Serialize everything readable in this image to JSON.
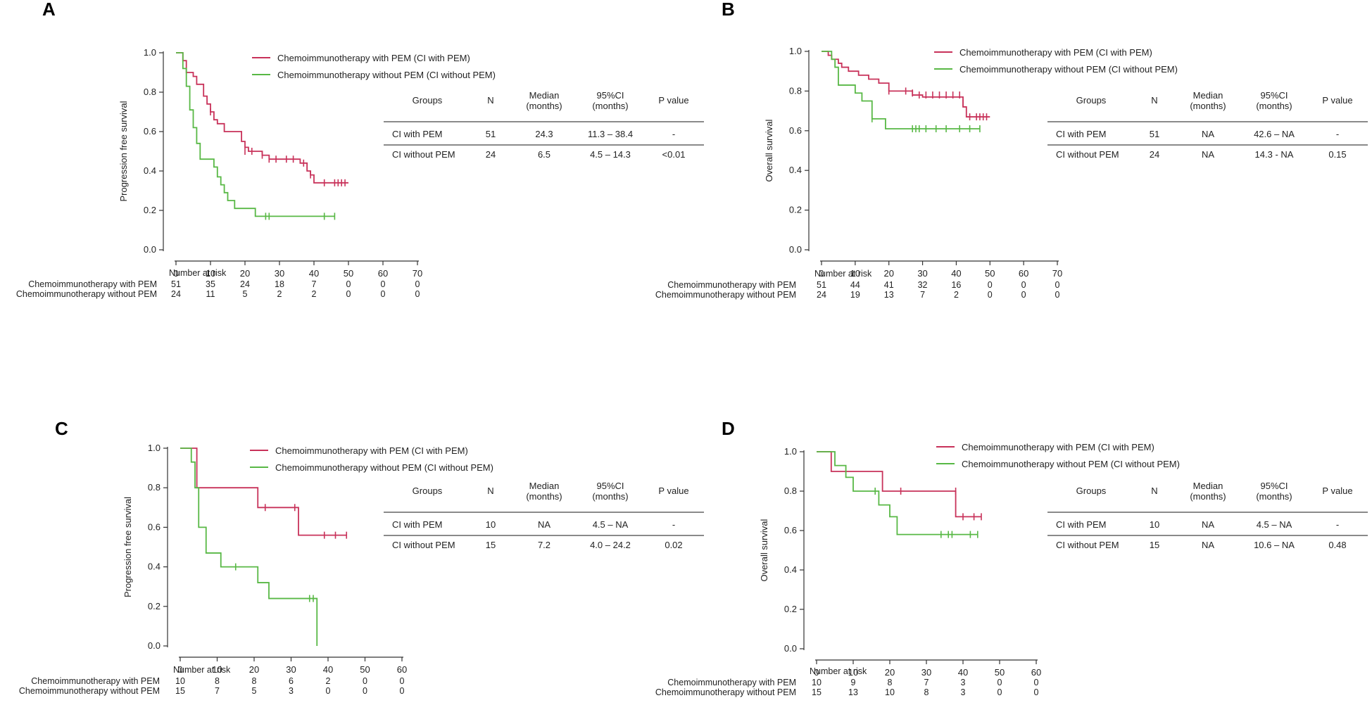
{
  "colors": {
    "with_pem": "#c8325a",
    "without_pem": "#58b845",
    "axis": "#333333"
  },
  "chart_data": [
    {
      "type": "line",
      "panel": "A",
      "ylabel": "Progression free survival",
      "xlim": [
        0,
        70
      ],
      "ylim": [
        0.0,
        1.0
      ],
      "xticks": [
        "0",
        "10",
        "20",
        "30",
        "40",
        "50",
        "60",
        "70"
      ],
      "yticks": [
        "0.0",
        "0.2",
        "0.4",
        "0.6",
        "0.8",
        "1.0"
      ],
      "legend": [
        "Chemoimmunotherapy  with PEM  (CI  with PEM)",
        "Chemoimmunotherapy  without PEM  (CI  without PEM)"
      ],
      "table": {
        "headers": [
          "Groups",
          "N",
          "Median\n(months)",
          "95%CI\n(months)",
          "P value"
        ],
        "rows": [
          [
            "CI  with PEM",
            "51",
            "24.3",
            "11.3 – 38.4",
            "-"
          ],
          [
            "CI  without PEM",
            "24",
            "6.5",
            "4.5 – 14.3",
            "<0.01"
          ]
        ]
      },
      "risk": {
        "title": "Number at risk",
        "rows": [
          {
            "label": "Chemoimmunotherapy  with PEM",
            "values": [
              "51",
              "35",
              "24",
              "18",
              "7",
              "0",
              "0",
              "0"
            ]
          },
          {
            "label": "Chemoimmunotherapy  without PEM",
            "values": [
              "24",
              "11",
              "5",
              "2",
              "2",
              "0",
              "0",
              "0"
            ]
          }
        ]
      },
      "series": [
        {
          "name": "CI with PEM",
          "steps": [
            [
              0,
              1.0
            ],
            [
              2,
              0.96
            ],
            [
              3,
              0.9
            ],
            [
              5,
              0.88
            ],
            [
              6,
              0.84
            ],
            [
              8,
              0.78
            ],
            [
              9,
              0.74
            ],
            [
              10,
              0.7
            ],
            [
              11,
              0.66
            ],
            [
              12,
              0.64
            ],
            [
              14,
              0.6
            ],
            [
              19,
              0.55
            ],
            [
              20,
              0.52
            ],
            [
              21,
              0.5
            ],
            [
              25,
              0.48
            ],
            [
              27,
              0.46
            ],
            [
              36,
              0.44
            ],
            [
              38,
              0.4
            ],
            [
              39,
              0.38
            ],
            [
              40,
              0.34
            ],
            [
              50,
              0.34
            ]
          ],
          "censors": [
            [
              10,
              0.7
            ],
            [
              20,
              0.5
            ],
            [
              22,
              0.5
            ],
            [
              25,
              0.48
            ],
            [
              27,
              0.46
            ],
            [
              29,
              0.46
            ],
            [
              32,
              0.46
            ],
            [
              34,
              0.46
            ],
            [
              37,
              0.44
            ],
            [
              38,
              0.42
            ],
            [
              39,
              0.38
            ],
            [
              43,
              0.34
            ],
            [
              46,
              0.34
            ],
            [
              47,
              0.34
            ],
            [
              48,
              0.34
            ],
            [
              49,
              0.34
            ]
          ]
        },
        {
          "name": "CI without PEM",
          "steps": [
            [
              0,
              1.0
            ],
            [
              2,
              0.92
            ],
            [
              3,
              0.83
            ],
            [
              4,
              0.71
            ],
            [
              5,
              0.62
            ],
            [
              6,
              0.54
            ],
            [
              7,
              0.46
            ],
            [
              11,
              0.42
            ],
            [
              12,
              0.37
            ],
            [
              13,
              0.33
            ],
            [
              14,
              0.29
            ],
            [
              15,
              0.25
            ],
            [
              17,
              0.21
            ],
            [
              23,
              0.17
            ],
            [
              46,
              0.17
            ]
          ],
          "censors": [
            [
              26,
              0.17
            ],
            [
              27,
              0.17
            ],
            [
              43,
              0.17
            ],
            [
              46,
              0.17
            ]
          ]
        }
      ]
    },
    {
      "type": "line",
      "panel": "B",
      "ylabel": "Overall survival",
      "xlim": [
        0,
        70
      ],
      "ylim": [
        0.0,
        1.0
      ],
      "xticks": [
        "0",
        "10",
        "20",
        "30",
        "40",
        "50",
        "60",
        "70"
      ],
      "yticks": [
        "0.0",
        "0.2",
        "0.4",
        "0.6",
        "0.8",
        "1.0"
      ],
      "legend": [
        "Chemoimmunotherapy  with PEM  (CI  with PEM)",
        "Chemoimmunotherapy  without PEM  (CI  without PEM)"
      ],
      "table": {
        "headers": [
          "Groups",
          "N",
          "Median\n(months)",
          "95%CI\n(months)",
          "P value"
        ],
        "rows": [
          [
            "CI  with PEM",
            "51",
            "NA",
            "42.6 – NA",
            "-"
          ],
          [
            "CI  without PEM",
            "24",
            "NA",
            "14.3 - NA",
            "0.15"
          ]
        ]
      },
      "risk": {
        "title": "Number at risk",
        "rows": [
          {
            "label": "Chemoimmunotherapy  with PEM",
            "values": [
              "51",
              "44",
              "41",
              "32",
              "16",
              "0",
              "0",
              "0"
            ]
          },
          {
            "label": "Chemoimmunotherapy  without PEM",
            "values": [
              "24",
              "19",
              "13",
              "7",
              "2",
              "0",
              "0",
              "0"
            ]
          }
        ]
      },
      "series": [
        {
          "name": "CI with PEM",
          "steps": [
            [
              0,
              1.0
            ],
            [
              2,
              0.98
            ],
            [
              3,
              0.96
            ],
            [
              5,
              0.94
            ],
            [
              6,
              0.92
            ],
            [
              8,
              0.9
            ],
            [
              11,
              0.88
            ],
            [
              14,
              0.86
            ],
            [
              17,
              0.84
            ],
            [
              20,
              0.8
            ],
            [
              27,
              0.78
            ],
            [
              30,
              0.77
            ],
            [
              42,
              0.72
            ],
            [
              43,
              0.67
            ],
            [
              50,
              0.67
            ]
          ],
          "censors": [
            [
              20,
              0.8
            ],
            [
              25,
              0.8
            ],
            [
              27,
              0.79
            ],
            [
              29,
              0.78
            ],
            [
              31,
              0.78
            ],
            [
              33,
              0.78
            ],
            [
              35,
              0.78
            ],
            [
              37,
              0.78
            ],
            [
              39,
              0.78
            ],
            [
              41,
              0.78
            ],
            [
              42,
              0.74
            ],
            [
              44,
              0.67
            ],
            [
              46,
              0.67
            ],
            [
              47,
              0.67
            ],
            [
              48,
              0.67
            ],
            [
              49,
              0.67
            ]
          ]
        },
        {
          "name": "CI without PEM",
          "steps": [
            [
              0,
              1.0
            ],
            [
              3,
              0.96
            ],
            [
              4,
              0.92
            ],
            [
              5,
              0.83
            ],
            [
              10,
              0.79
            ],
            [
              12,
              0.75
            ],
            [
              15,
              0.66
            ],
            [
              19,
              0.61
            ],
            [
              47,
              0.61
            ]
          ],
          "censors": [
            [
              15,
              0.66
            ],
            [
              27,
              0.61
            ],
            [
              28,
              0.61
            ],
            [
              29,
              0.61
            ],
            [
              31,
              0.61
            ],
            [
              34,
              0.61
            ],
            [
              37,
              0.61
            ],
            [
              41,
              0.61
            ],
            [
              44,
              0.61
            ],
            [
              47,
              0.61
            ]
          ]
        }
      ]
    },
    {
      "type": "line",
      "panel": "C",
      "ylabel": "Progression free survival",
      "xlim": [
        0,
        60
      ],
      "ylim": [
        0.0,
        1.0
      ],
      "xticks": [
        "0",
        "10",
        "20",
        "30",
        "40",
        "50",
        "60"
      ],
      "yticks": [
        "0.0",
        "0.2",
        "0.4",
        "0.6",
        "0.8",
        "1.0"
      ],
      "legend": [
        "Chemoimmunotherapy  with PEM  (CI  with PEM)",
        "Chemoimmunotherapy  without PEM  (CI  without PEM)"
      ],
      "table": {
        "headers": [
          "Groups",
          "N",
          "Median\n(months)",
          "95%CI\n(months)",
          "P value"
        ],
        "rows": [
          [
            "CI  with PEM",
            "10",
            "NA",
            "4.5 – NA",
            "-"
          ],
          [
            "CI  without PEM",
            "15",
            "7.2",
            "4.0 – 24.2",
            "0.02"
          ]
        ]
      },
      "risk": {
        "title": "Number at risk",
        "rows": [
          {
            "label": "Chemoimmunotherapy  with PEM",
            "values": [
              "10",
              "8",
              "8",
              "6",
              "2",
              "0",
              "0"
            ]
          },
          {
            "label": "Chemoimmunotherapy  without PEM",
            "values": [
              "15",
              "7",
              "5",
              "3",
              "0",
              "0",
              "0"
            ]
          }
        ]
      },
      "series": [
        {
          "name": "CI with PEM",
          "steps": [
            [
              0,
              1.0
            ],
            [
              4.5,
              0.8
            ],
            [
              21,
              0.7
            ],
            [
              32,
              0.56
            ],
            [
              45,
              0.56
            ]
          ],
          "censors": [
            [
              23,
              0.7
            ],
            [
              31,
              0.7
            ],
            [
              39,
              0.56
            ],
            [
              42,
              0.56
            ],
            [
              45,
              0.56
            ]
          ]
        },
        {
          "name": "CI without PEM",
          "steps": [
            [
              0,
              1.0
            ],
            [
              3,
              0.93
            ],
            [
              4,
              0.8
            ],
            [
              5,
              0.6
            ],
            [
              7,
              0.47
            ],
            [
              11,
              0.4
            ],
            [
              21,
              0.32
            ],
            [
              24,
              0.24
            ],
            [
              37,
              0.0
            ]
          ],
          "censors": [
            [
              15,
              0.4
            ],
            [
              35,
              0.24
            ],
            [
              36,
              0.24
            ]
          ]
        }
      ]
    },
    {
      "type": "line",
      "panel": "D",
      "ylabel": "Overall survival",
      "xlim": [
        0,
        60
      ],
      "ylim": [
        0.0,
        1.0
      ],
      "xticks": [
        "0",
        "10",
        "20",
        "30",
        "40",
        "50",
        "60"
      ],
      "yticks": [
        "0.0",
        "0.2",
        "0.4",
        "0.6",
        "0.8",
        "1.0"
      ],
      "legend": [
        "Chemoimmunotherapy  with PEM  (CI  with PEM)",
        "Chemoimmunotherapy  without PEM  (CI  without PEM)"
      ],
      "table": {
        "headers": [
          "Groups",
          "N",
          "Median\n(months)",
          "95%CI\n(months)",
          "P value"
        ],
        "rows": [
          [
            "CI  with PEM",
            "10",
            "NA",
            "4.5 – NA",
            "-"
          ],
          [
            "CI  without PEM",
            "15",
            "NA",
            "10.6 – NA",
            "0.48"
          ]
        ]
      },
      "risk": {
        "title": "Number at risk",
        "rows": [
          {
            "label": "Chemoimmunotherapy  with PEM",
            "values": [
              "10",
              "9",
              "8",
              "7",
              "3",
              "0",
              "0"
            ]
          },
          {
            "label": "Chemoimmunotherapy  without PEM",
            "values": [
              "15",
              "13",
              "10",
              "8",
              "3",
              "0",
              "0"
            ]
          }
        ]
      },
      "series": [
        {
          "name": "CI with PEM",
          "steps": [
            [
              0,
              1.0
            ],
            [
              4,
              0.9
            ],
            [
              18,
              0.8
            ],
            [
              38,
              0.67
            ],
            [
              45,
              0.67
            ]
          ],
          "censors": [
            [
              23,
              0.8
            ],
            [
              38,
              0.8
            ],
            [
              40,
              0.67
            ],
            [
              43,
              0.67
            ],
            [
              45,
              0.67
            ]
          ]
        },
        {
          "name": "CI without PEM",
          "steps": [
            [
              0,
              1.0
            ],
            [
              5,
              0.93
            ],
            [
              8,
              0.87
            ],
            [
              10,
              0.8
            ],
            [
              17,
              0.73
            ],
            [
              20,
              0.67
            ],
            [
              22,
              0.58
            ],
            [
              44,
              0.58
            ]
          ],
          "censors": [
            [
              16,
              0.8
            ],
            [
              34,
              0.58
            ],
            [
              36,
              0.58
            ],
            [
              37,
              0.58
            ],
            [
              42,
              0.58
            ],
            [
              44,
              0.58
            ]
          ]
        }
      ]
    }
  ]
}
